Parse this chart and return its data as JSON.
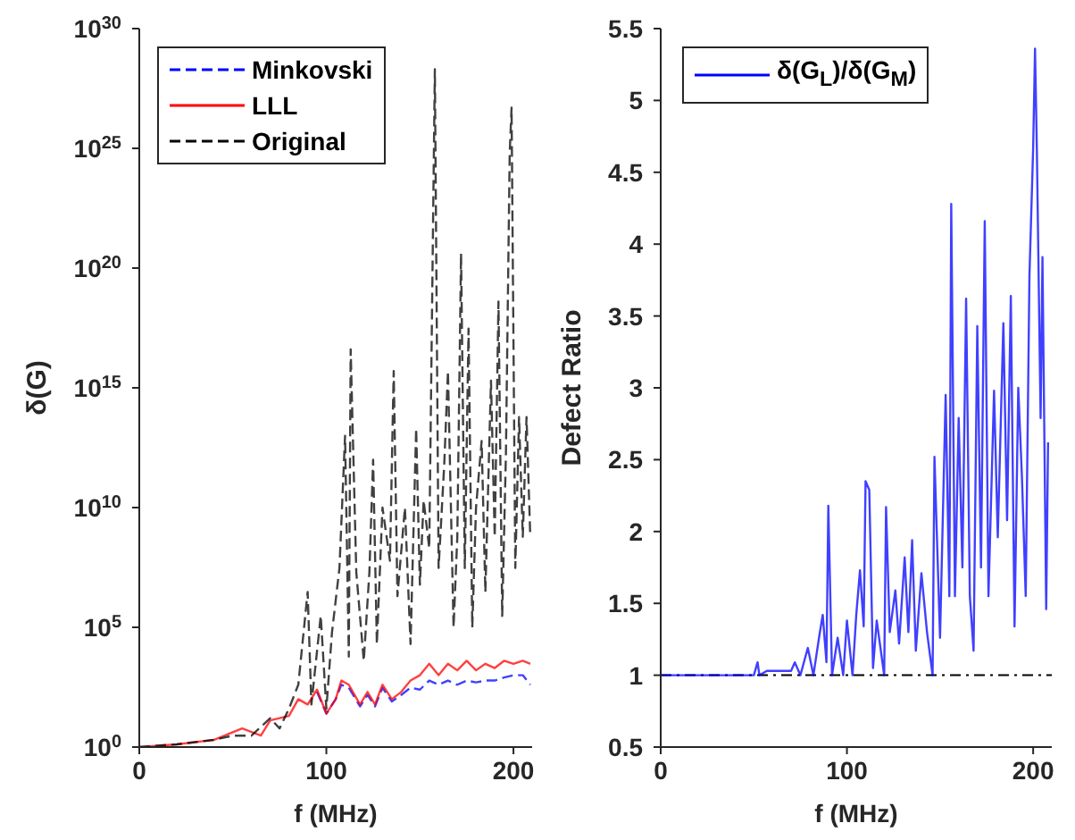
{
  "chart_data": [
    {
      "type": "line",
      "xlabel": "f (MHz)",
      "ylabel": "δ(G)",
      "log": "y",
      "xlim": [
        0,
        210
      ],
      "xticks": [
        0,
        100,
        200
      ],
      "ylim": [
        1,
        1e+30
      ],
      "yticks": [
        {
          "value": 1,
          "label": "10$^{0}$"
        },
        {
          "value": 100000.0,
          "label": "10$^{5}$"
        },
        {
          "value": 10000000000.0,
          "label": "10$^{10}$"
        },
        {
          "value": 1000000000000000.0,
          "label": "10$^{15}$"
        },
        {
          "value": 1e+20,
          "label": "10$^{20}$"
        },
        {
          "value": 1e+25,
          "label": "10$^{25}$"
        },
        {
          "value": 1e+30,
          "label": "10$^{30}$"
        }
      ],
      "grid": false,
      "legend": "top left",
      "marker": "none",
      "series": [
        {
          "name": "Minkovski",
          "color": "#0000ff",
          "line_style": "dashed",
          "x": [
            95,
            100,
            105,
            108,
            112,
            118,
            122,
            126,
            130,
            135,
            140,
            145,
            150,
            155,
            160,
            165,
            170,
            175,
            180,
            185,
            190,
            195,
            200,
            205,
            209
          ],
          "values": [
            200,
            25,
            100,
            400,
            300,
            50,
            150,
            50,
            300,
            80,
            150,
            300,
            250,
            600,
            400,
            600,
            400,
            600,
            500,
            600,
            600,
            800,
            1000,
            1000,
            400
          ]
        },
        {
          "name": "LLL",
          "color": "#ff0000",
          "line_style": "solid",
          "x": [
            0,
            20,
            40,
            55,
            65,
            70,
            80,
            85,
            90,
            95,
            100,
            105,
            108,
            112,
            118,
            122,
            126,
            130,
            135,
            140,
            145,
            150,
            155,
            160,
            165,
            170,
            175,
            180,
            185,
            190,
            195,
            200,
            205,
            209
          ],
          "values": [
            1,
            1.3,
            2,
            6,
            3,
            13,
            20,
            100,
            60,
            250,
            25,
            100,
            600,
            400,
            60,
            200,
            60,
            400,
            100,
            200,
            600,
            1000,
            3000,
            1000,
            3000,
            1600,
            4000,
            1600,
            3000,
            2000,
            4000,
            3000,
            4000,
            3000
          ]
        },
        {
          "name": "Original",
          "color": "#000000",
          "line_style": "dashed",
          "x": [
            0,
            20,
            40,
            50,
            60,
            70,
            75,
            80,
            85,
            90,
            92,
            97,
            100,
            103,
            107,
            110,
            112,
            113,
            116,
            120,
            123,
            125,
            127,
            130,
            134,
            136,
            138,
            142,
            145,
            148,
            150,
            152,
            155,
            158,
            160,
            163,
            165,
            168,
            170,
            172,
            174,
            176,
            178,
            180,
            183,
            185,
            188,
            190,
            192,
            194,
            196,
            198,
            199,
            201,
            203,
            205,
            207,
            209
          ],
          "values": [
            1,
            1.3,
            2,
            3,
            3,
            16,
            6,
            40,
            400,
            3000000.0,
            60,
            300000.0,
            40,
            60000.0,
            30000000.0,
            10000000000000.0,
            6000,
            4e+16,
            20000000.0,
            4000,
            20000000.0,
            1000000000000.0,
            20000.0,
            10000000000.0,
            60000000.0,
            5000000000000000.0,
            2000000.0,
            10000000000.0,
            20000.0,
            20000000000000.0,
            6000000.0,
            20000000000.0,
            200000000.0,
            2e+28,
            30000000.0,
            600000000000.0,
            5000000000000000.0,
            100000.0,
            600000000.0,
            4e+20,
            30000000.0,
            3e+17,
            100000.0,
            10000000000.0,
            6000000000000.0,
            3000000.0,
            2000000000000000.0,
            600000000.0,
            4e+18,
            300000.0,
            2000000000000.0,
            6e+24,
            5e+26,
            30000000.0,
            60000000000000.0,
            600000000.0,
            60000000000000.0,
            600000000.0
          ]
        }
      ]
    },
    {
      "type": "line",
      "xlabel": "f (MHz)",
      "ylabel": "Defect Ratio",
      "xlim": [
        0,
        210
      ],
      "xticks": [
        0,
        100,
        200
      ],
      "ylim": [
        0.5,
        5.5
      ],
      "yticks": [
        0.5,
        1,
        1.5,
        2,
        2.5,
        3,
        3.5,
        4,
        4.5,
        5,
        5.5
      ],
      "grid": false,
      "legend": "top left",
      "marker": "none",
      "ref_lines": [
        {
          "axis": "y",
          "value": 1,
          "color": "#000000",
          "line_style": "dashed"
        }
      ],
      "series": [
        {
          "name": "δ(G$_{L}$)/δ(G$_{M}$)",
          "color": "#0000ff",
          "line_style": "solid",
          "x": [
            0,
            50,
            52,
            53,
            57,
            70,
            72,
            75,
            79,
            82,
            85,
            87,
            89,
            90,
            92,
            95,
            98,
            100,
            103,
            105,
            107,
            109,
            110,
            112,
            114,
            116,
            120,
            121,
            123,
            126,
            128,
            131,
            133,
            135,
            137,
            140,
            143,
            146,
            147,
            150,
            153,
            155,
            156,
            158,
            160,
            162,
            164,
            166,
            168,
            170,
            172,
            174,
            176,
            179,
            181,
            184,
            186,
            188,
            190,
            192,
            194,
            196,
            198,
            200,
            201,
            202,
            204,
            205,
            207,
            208
          ],
          "values": [
            1,
            1,
            1.09,
            1,
            1.03,
            1.03,
            1.09,
            1,
            1.19,
            1,
            1.26,
            1.42,
            1.09,
            2.18,
            1,
            1.26,
            1,
            1.38,
            1,
            1.42,
            1.73,
            1.34,
            2.35,
            2.29,
            1.05,
            1.38,
            1,
            2.17,
            1.3,
            1.59,
            1.22,
            1.82,
            1.3,
            1.94,
            1.17,
            1.71,
            1.3,
            1,
            2.52,
            1.26,
            2.95,
            1.55,
            4.28,
            1.55,
            2.79,
            1.75,
            3.62,
            1.55,
            1.17,
            3.43,
            1.75,
            4.16,
            1.55,
            2.98,
            1.96,
            3.45,
            2.08,
            3.64,
            1.34,
            3,
            2.37,
            1.55,
            3.78,
            4.67,
            5.36,
            4.65,
            2.79,
            3.91,
            1.46,
            2.62
          ]
        }
      ]
    }
  ]
}
